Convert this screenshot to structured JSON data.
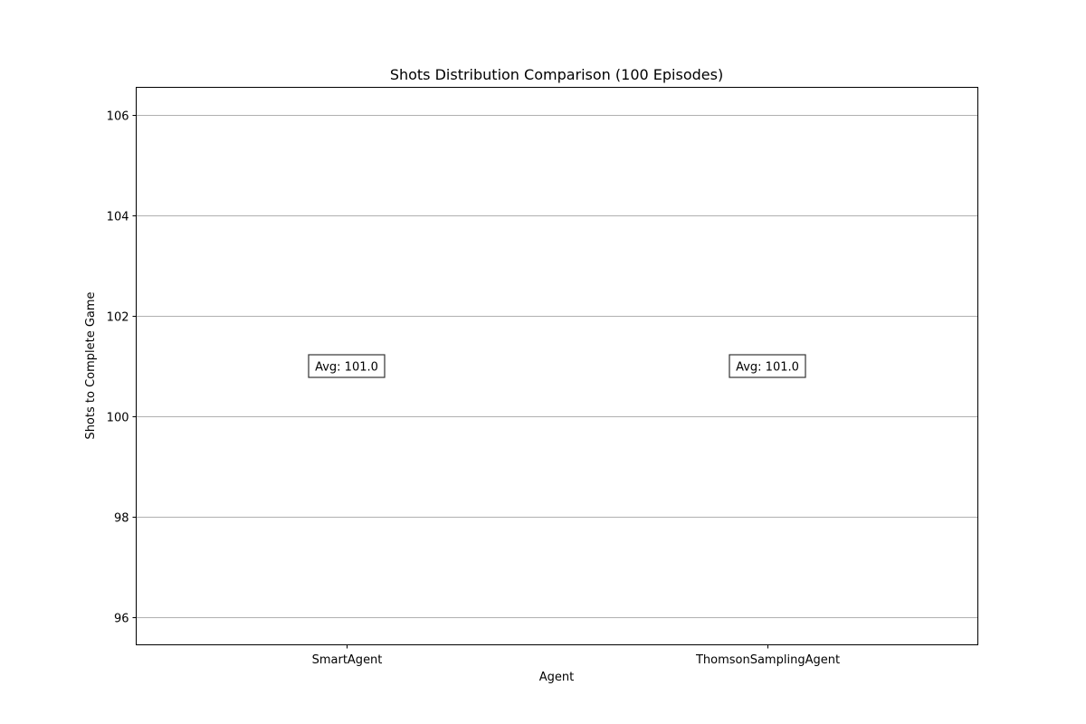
{
  "chart_data": {
    "type": "box",
    "title": "Shots Distribution Comparison (100 Episodes)",
    "xlabel": "Agent",
    "ylabel": "Shots to Complete Game",
    "categories": [
      "SmartAgent",
      "ThomsonSamplingAgent"
    ],
    "values": [
      101.0,
      101.0
    ],
    "annotations": [
      "Avg: 101.0",
      "Avg: 101.0"
    ],
    "ylim": [
      95.45,
      106.55
    ],
    "yticks": [
      96,
      98,
      100,
      102,
      104,
      106
    ],
    "ytick_labels": [
      "96",
      "98",
      "100",
      "102",
      "104",
      "106"
    ],
    "grid": "y",
    "legend": "none"
  }
}
